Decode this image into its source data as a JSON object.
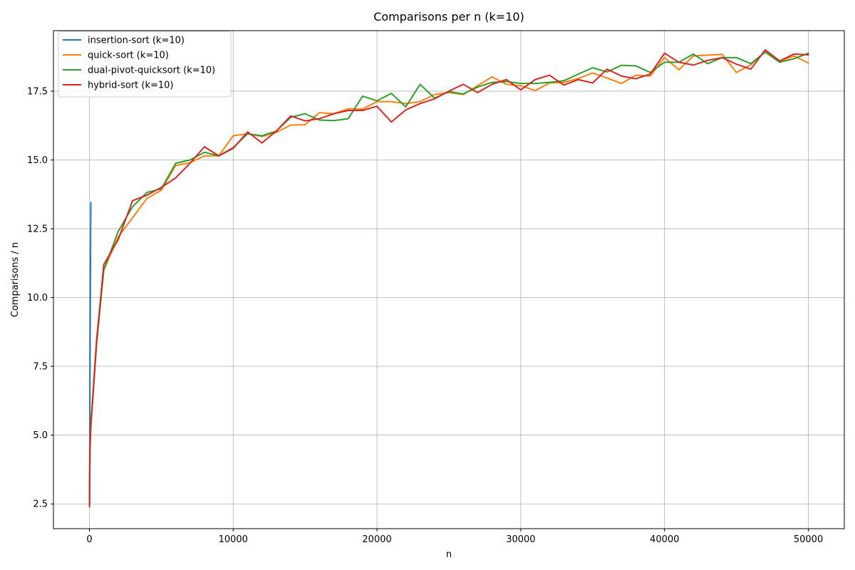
{
  "chart_data": {
    "type": "line",
    "title": "Comparisons per n (k=10)",
    "xlabel": "n",
    "ylabel": "Comparisons / n",
    "xlim": [
      -2500,
      52500
    ],
    "ylim": [
      1.6,
      19.7
    ],
    "xticks": [
      0,
      10000,
      20000,
      30000,
      40000,
      50000
    ],
    "yticks": [
      2.5,
      5.0,
      7.5,
      10.0,
      12.5,
      15.0,
      17.5
    ],
    "ytick_labels": [
      "2.5",
      "5.0",
      "7.5",
      "10.0",
      "12.5",
      "15.0",
      "17.5"
    ],
    "grid": true,
    "legend_position": "top-left",
    "series": [
      {
        "name": "insertion-sort (k=10)",
        "color": "#1f77b4",
        "x": [
          10,
          20,
          30,
          40,
          50,
          60,
          70,
          80,
          90,
          100
        ],
        "y": [
          2.5,
          4.0,
          5.5,
          7.0,
          8.2,
          9.4,
          10.5,
          11.6,
          12.5,
          13.45
        ]
      },
      {
        "name": "quick-sort (k=10)",
        "color": "#ff7f0e",
        "x": [
          10,
          20,
          50,
          100,
          500,
          1000,
          2000,
          3000,
          4000,
          5000,
          6000,
          7000,
          8000,
          9000,
          10000,
          11000,
          12000,
          13000,
          14000,
          15000,
          16000,
          17000,
          18000,
          19000,
          20000,
          21000,
          22000,
          23000,
          24000,
          25000,
          26000,
          27000,
          28000,
          29000,
          30000,
          31000,
          32000,
          33000,
          34000,
          35000,
          36000,
          37000,
          38000,
          39000,
          40000,
          41000,
          42000,
          43000,
          44000,
          45000,
          46000,
          47000,
          48000,
          49000,
          50000
        ],
        "y": [
          2.5,
          3.6,
          4.8,
          5.4,
          8.5,
          11.0,
          12.2,
          12.9,
          13.6,
          13.9,
          14.8,
          14.9,
          15.15,
          15.15,
          15.88,
          15.95,
          15.85,
          16.0,
          16.27,
          16.28,
          16.72,
          16.68,
          16.86,
          16.85,
          17.12,
          17.12,
          17.05,
          17.12,
          17.38,
          17.45,
          17.38,
          17.7,
          18.02,
          17.75,
          17.7,
          17.52,
          17.8,
          17.82,
          17.96,
          18.16,
          17.98,
          17.78,
          18.08,
          18.05,
          18.72,
          18.28,
          18.78,
          18.81,
          18.84,
          18.18,
          18.46,
          18.95,
          18.58,
          18.78,
          18.52
        ]
      },
      {
        "name": "dual-pivot-quicksort (k=10)",
        "color": "#2ca02c",
        "x": [
          10,
          20,
          50,
          100,
          500,
          1000,
          2000,
          3000,
          4000,
          5000,
          6000,
          7000,
          8000,
          9000,
          10000,
          11000,
          12000,
          13000,
          14000,
          15000,
          16000,
          17000,
          18000,
          19000,
          20000,
          21000,
          22000,
          23000,
          24000,
          25000,
          26000,
          27000,
          28000,
          29000,
          30000,
          31000,
          32000,
          33000,
          34000,
          35000,
          36000,
          37000,
          38000,
          39000,
          40000,
          41000,
          42000,
          43000,
          44000,
          45000,
          46000,
          47000,
          48000,
          49000,
          50000
        ],
        "y": [
          2.45,
          3.5,
          4.7,
          5.3,
          8.3,
          11.0,
          12.4,
          13.3,
          13.82,
          13.95,
          14.88,
          15.0,
          15.28,
          15.15,
          15.45,
          15.95,
          15.88,
          16.05,
          16.55,
          16.68,
          16.45,
          16.43,
          16.5,
          17.32,
          17.15,
          17.42,
          16.93,
          17.75,
          17.25,
          17.48,
          17.4,
          17.65,
          17.82,
          17.85,
          17.78,
          17.78,
          17.82,
          17.88,
          18.12,
          18.35,
          18.2,
          18.44,
          18.42,
          18.18,
          18.55,
          18.55,
          18.85,
          18.5,
          18.72,
          18.72,
          18.5,
          18.92,
          18.55,
          18.68,
          18.88
        ]
      },
      {
        "name": "hybrid-sort (k=10)",
        "color": "#d62728",
        "x": [
          10,
          20,
          50,
          100,
          500,
          1000,
          2000,
          3000,
          4000,
          5000,
          6000,
          7000,
          8000,
          9000,
          10000,
          11000,
          12000,
          13000,
          14000,
          15000,
          16000,
          17000,
          18000,
          19000,
          20000,
          21000,
          22000,
          23000,
          24000,
          25000,
          26000,
          27000,
          28000,
          29000,
          30000,
          31000,
          32000,
          33000,
          34000,
          35000,
          36000,
          37000,
          38000,
          39000,
          40000,
          41000,
          42000,
          43000,
          44000,
          45000,
          46000,
          47000,
          48000,
          49000,
          50000
        ],
        "y": [
          2.4,
          3.4,
          4.6,
          5.3,
          8.4,
          11.2,
          12.1,
          13.52,
          13.72,
          14.0,
          14.35,
          14.88,
          15.48,
          15.15,
          15.42,
          16.02,
          15.62,
          16.05,
          16.6,
          16.42,
          16.5,
          16.68,
          16.8,
          16.8,
          16.95,
          16.38,
          16.82,
          17.05,
          17.22,
          17.5,
          17.75,
          17.45,
          17.75,
          17.92,
          17.55,
          17.92,
          18.08,
          17.72,
          17.92,
          17.8,
          18.3,
          18.05,
          17.95,
          18.12,
          18.88,
          18.55,
          18.45,
          18.62,
          18.72,
          18.48,
          18.3,
          19.0,
          18.6,
          18.85,
          18.82
        ]
      }
    ]
  }
}
